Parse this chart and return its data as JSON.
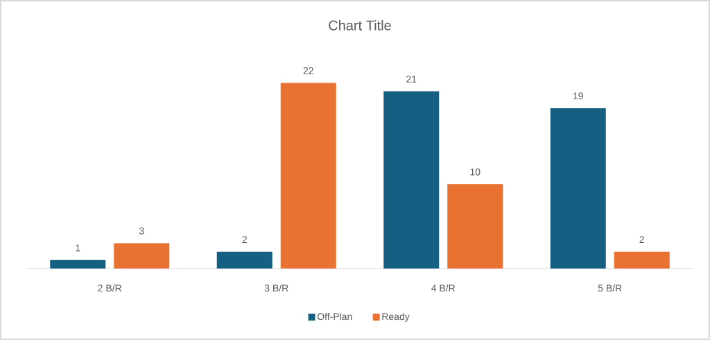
{
  "chart_data": {
    "type": "bar",
    "title": "Chart Title",
    "categories": [
      "2 B/R",
      "3 B/R",
      "4 B/R",
      "5 B/R"
    ],
    "series": [
      {
        "name": "Off-Plan",
        "color": "#156082",
        "values": [
          1,
          2,
          21,
          19
        ]
      },
      {
        "name": "Ready",
        "color": "#e97132",
        "values": [
          3,
          22,
          10,
          2
        ]
      }
    ],
    "data_labels": true,
    "legend": "bottom",
    "tick_labels": "x"
  }
}
